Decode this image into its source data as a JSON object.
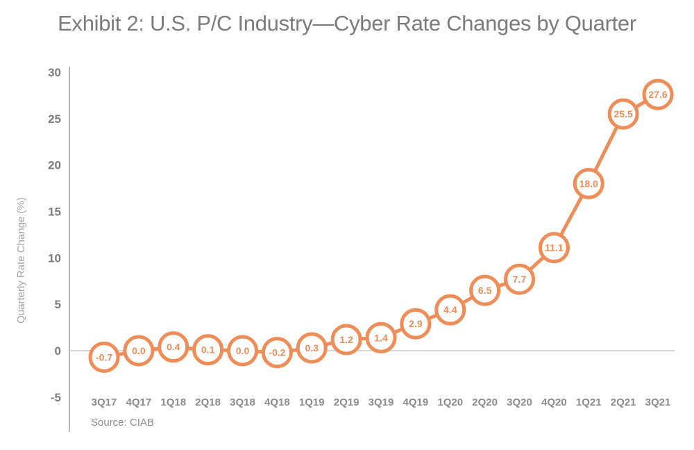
{
  "chart_data": {
    "type": "line",
    "title": "Exhibit 2: U.S. P/C Industry—Cyber Rate Changes by Quarter",
    "xlabel": "",
    "ylabel": "Quarterly Rate Change (%)",
    "ylim": [
      -5,
      30
    ],
    "yticks": [
      "30",
      "25",
      "20",
      "15",
      "10",
      "5",
      "0",
      "-5"
    ],
    "ytick_values": [
      30,
      25,
      20,
      15,
      10,
      5,
      0,
      -5
    ],
    "categories": [
      "3Q17",
      "4Q17",
      "1Q18",
      "2Q18",
      "3Q18",
      "4Q18",
      "1Q19",
      "2Q19",
      "3Q19",
      "4Q19",
      "1Q20",
      "2Q20",
      "3Q20",
      "4Q20",
      "1Q21",
      "2Q21",
      "3Q21"
    ],
    "series": [
      {
        "name": "Cyber Rate Change",
        "values": [
          -0.7,
          0.0,
          0.4,
          0.1,
          0.0,
          -0.2,
          0.3,
          1.2,
          1.4,
          2.9,
          4.4,
          6.5,
          7.7,
          11.1,
          18.0,
          25.5,
          27.6
        ],
        "labels": [
          "-0.7",
          "0.0",
          "0.4",
          "0.1",
          "0.0",
          "-0.2",
          "0.3",
          "1.2",
          "1.4",
          "2.9",
          "4.4",
          "6.5",
          "7.7",
          "11.1",
          "18.0",
          "25.5",
          "27.6"
        ],
        "color": "#ef8d58"
      }
    ],
    "grid": false,
    "zero_line": true,
    "legend": "none",
    "source": "Source: CIAB"
  },
  "colors": {
    "series": "#ef8d58",
    "axis": "#9a9b9c",
    "zero_line": "#c8c8c8",
    "text": "#7a7b7c"
  }
}
